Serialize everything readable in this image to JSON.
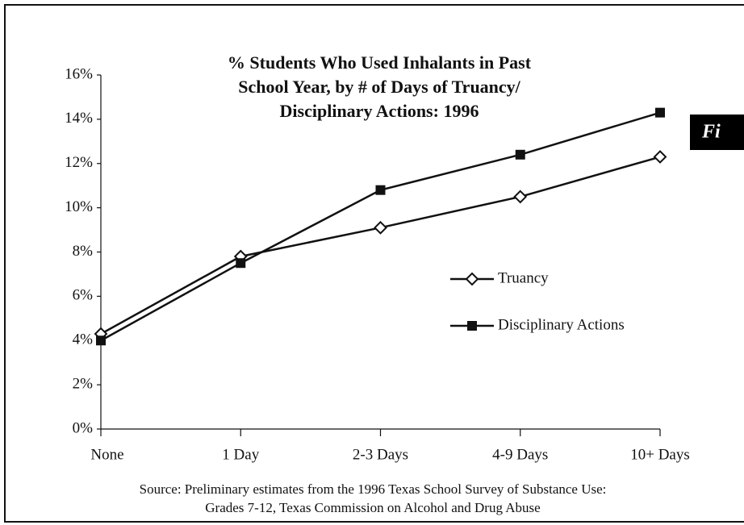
{
  "chart_data": {
    "type": "line",
    "title": [
      "% Students Who Used Inhalants in Past",
      "School Year, by # of Days of Truancy/",
      "Disciplinary Actions: 1996"
    ],
    "source": [
      "Source: Preliminary estimates from the 1996 Texas School Survey of Substance Use:",
      "Grades 7-12, Texas Commission on Alcohol and Drug Abuse"
    ],
    "annotation": "Fi",
    "categories": [
      "None",
      "1 Day",
      "2-3 Days",
      "4-9 Days",
      "10+ Days"
    ],
    "series": [
      {
        "name": "Truancy",
        "color": "#111111",
        "marker": "diamond-open",
        "values": [
          4.3,
          7.8,
          9.1,
          10.5,
          12.3
        ]
      },
      {
        "name": "Disciplinary Actions",
        "color": "#111111",
        "marker": "square",
        "values": [
          4.0,
          7.5,
          10.8,
          12.4,
          14.3
        ]
      }
    ],
    "ylim": [
      0,
      16
    ],
    "yticks": [
      {
        "value": 0,
        "label": "0%"
      },
      {
        "value": 2,
        "label": "2%"
      },
      {
        "value": 4,
        "label": "4%"
      },
      {
        "value": 6,
        "label": "6%"
      },
      {
        "value": 8,
        "label": "8%"
      },
      {
        "value": 10,
        "label": "10%"
      },
      {
        "value": 12,
        "label": "12%"
      },
      {
        "value": 14,
        "label": "14%"
      },
      {
        "value": 16,
        "label": "16%"
      }
    ],
    "grid": false
  }
}
